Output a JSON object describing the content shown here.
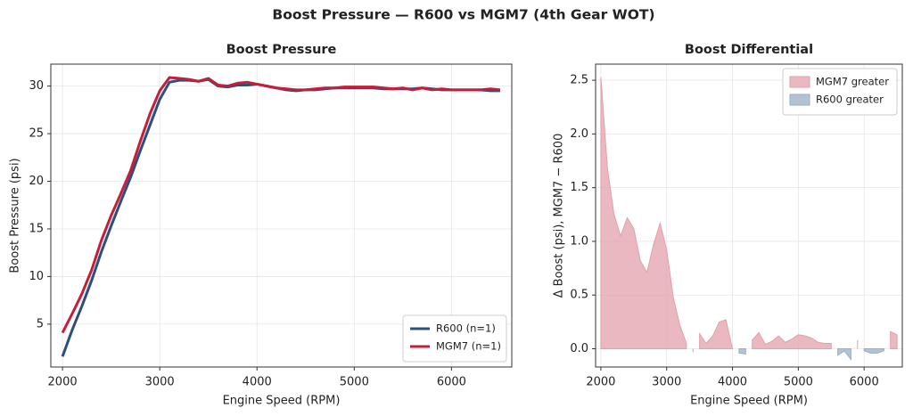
{
  "title": "Boost Pressure — R600 vs MGM7 (4th Gear WOT)",
  "chart_data": [
    {
      "type": "line",
      "title": "Boost Pressure",
      "xlabel": "Engine Speed (RPM)",
      "ylabel": "Boost Pressure (psi)",
      "x": [
        2000,
        2100,
        2200,
        2300,
        2400,
        2500,
        2600,
        2700,
        2800,
        2900,
        3000,
        3100,
        3200,
        3300,
        3400,
        3500,
        3600,
        3700,
        3800,
        3900,
        4000,
        4100,
        4200,
        4300,
        4400,
        4500,
        4600,
        4700,
        4800,
        4900,
        5000,
        5100,
        5200,
        5300,
        5400,
        5500,
        5600,
        5700,
        5800,
        5900,
        6000,
        6100,
        6200,
        6300,
        6400,
        6500
      ],
      "series": [
        {
          "name": "R600 (n=1)",
          "color": "#2c4f7c",
          "values": [
            1.6,
            4.4,
            6.9,
            9.6,
            12.6,
            15.3,
            17.9,
            20.4,
            23.2,
            25.9,
            28.6,
            30.4,
            30.6,
            30.6,
            30.5,
            30.7,
            30.0,
            29.9,
            30.1,
            30.1,
            30.2,
            30.0,
            29.8,
            29.6,
            29.5,
            29.6,
            29.6,
            29.7,
            29.8,
            29.8,
            29.8,
            29.8,
            29.8,
            29.7,
            29.7,
            29.7,
            29.7,
            29.8,
            29.7,
            29.6,
            29.6,
            29.6,
            29.6,
            29.6,
            29.5,
            29.5
          ]
        },
        {
          "name": "MGM7 (n=1)",
          "color": "#c41e3a",
          "values": [
            4.1,
            6.1,
            8.2,
            10.7,
            13.8,
            16.4,
            18.7,
            21.1,
            24.2,
            27.1,
            29.5,
            30.9,
            30.8,
            30.7,
            30.5,
            30.8,
            30.1,
            30.0,
            30.3,
            30.4,
            30.2,
            30.0,
            29.8,
            29.7,
            29.6,
            29.6,
            29.7,
            29.8,
            29.8,
            29.9,
            29.9,
            29.9,
            29.9,
            29.8,
            29.7,
            29.8,
            29.6,
            29.8,
            29.6,
            29.7,
            29.6,
            29.6,
            29.6,
            29.6,
            29.7,
            29.6
          ]
        }
      ],
      "xlim": [
        1880,
        6620
      ],
      "xticks": [
        2000,
        3000,
        4000,
        5000,
        6000
      ],
      "ylim": [
        0.5,
        32.3
      ],
      "yticks": [
        5,
        10,
        15,
        20,
        25,
        30
      ],
      "grid": true,
      "legend": "lower right"
    },
    {
      "type": "area",
      "title": "Boost Differential",
      "xlabel": "Engine Speed (RPM)",
      "ylabel": "Δ Boost (psi), MGM7 − R600",
      "x": [
        2000,
        2100,
        2200,
        2300,
        2400,
        2500,
        2600,
        2700,
        2800,
        2900,
        3000,
        3100,
        3200,
        3300,
        3400,
        3500,
        3600,
        3700,
        3800,
        3900,
        4000,
        4100,
        4200,
        4300,
        4400,
        4500,
        4600,
        4700,
        4800,
        4900,
        5000,
        5100,
        5200,
        5300,
        5400,
        5500,
        5600,
        5700,
        5800,
        5900,
        6000,
        6100,
        6200,
        6300,
        6400,
        6500
      ],
      "series": [
        {
          "name": "MGM7 greater",
          "color": "#e3a0ab",
          "values": [
            2.53,
            1.68,
            1.25,
            1.05,
            1.22,
            1.12,
            0.82,
            0.71,
            0.97,
            1.17,
            0.92,
            0.48,
            0.22,
            0.05,
            null,
            0.14,
            0.05,
            0.12,
            0.25,
            0.27,
            0,
            null,
            null,
            0.08,
            0.15,
            0.04,
            0.07,
            0.12,
            0.06,
            0.09,
            0.13,
            0.12,
            0.1,
            0.06,
            0.05,
            0.05,
            null,
            null,
            null,
            0.08,
            null,
            null,
            null,
            null,
            0.16,
            0.13
          ]
        },
        {
          "name": "R600 greater",
          "color": "#9aaec5",
          "values": [
            null,
            null,
            null,
            null,
            null,
            null,
            null,
            null,
            null,
            null,
            null,
            null,
            null,
            null,
            -0.03,
            null,
            null,
            null,
            null,
            null,
            null,
            -0.04,
            -0.05,
            null,
            null,
            null,
            null,
            null,
            null,
            null,
            null,
            null,
            null,
            null,
            null,
            null,
            -0.06,
            -0.02,
            -0.1,
            null,
            -0.02,
            -0.04,
            -0.04,
            -0.02,
            null,
            null
          ]
        }
      ],
      "xlim": [
        1920,
        6580
      ],
      "xticks": [
        2000,
        3000,
        4000,
        5000,
        6000
      ],
      "ylim": [
        -0.17,
        2.65
      ],
      "yticks": [
        {
          "value": 0,
          "label": "0.0"
        },
        0.5,
        {
          "value": 1,
          "label": "1.0"
        },
        1.5,
        {
          "value": 2,
          "label": "2.0"
        },
        2.5
      ],
      "grid": true,
      "legend": "upper right"
    }
  ]
}
